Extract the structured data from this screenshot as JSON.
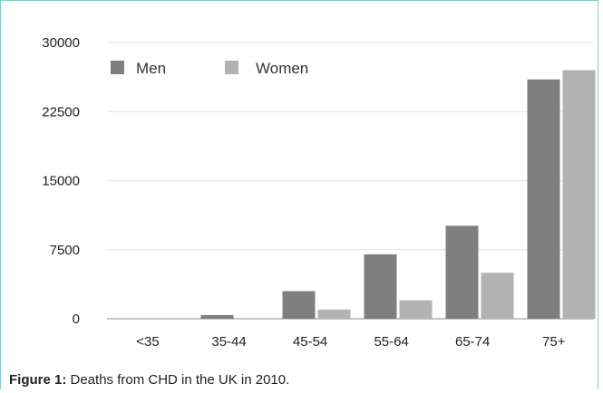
{
  "chart_data": {
    "type": "bar",
    "categories": [
      "<35",
      "35-44",
      "45-54",
      "55-64",
      "65-74",
      "75+"
    ],
    "series": [
      {
        "name": "Men",
        "color": "#7f7f7f",
        "values": [
          0,
          400,
          3000,
          7000,
          10100,
          26000
        ]
      },
      {
        "name": "Women",
        "color": "#b2b2b2",
        "values": [
          0,
          0,
          1000,
          2000,
          5000,
          27000
        ]
      }
    ],
    "yticks": [
      0,
      7500,
      15000,
      22500,
      30000
    ],
    "ylim": [
      0,
      30000
    ],
    "grid": true,
    "legend_position": "top-left",
    "xlabel": "",
    "ylabel": ""
  },
  "caption": {
    "label": "Figure 1:",
    "text": " Deaths from CHD in the UK in 2010."
  }
}
